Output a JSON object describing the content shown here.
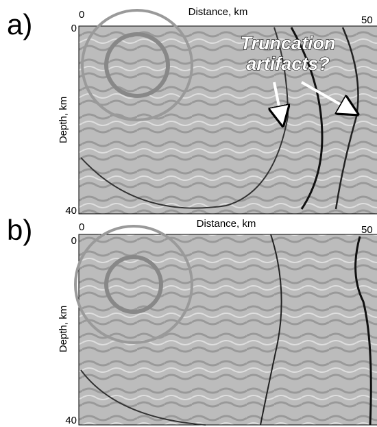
{
  "panels": [
    {
      "label": "a)",
      "x_label": "Distance, km",
      "y_label": "Depth, km",
      "x_ticks": [
        "0",
        "50"
      ],
      "y_ticks": [
        "0",
        "40"
      ],
      "annotation": [
        "Truncation",
        "artifacts?"
      ]
    },
    {
      "label": "b)",
      "x_label": "Distance, km",
      "y_label": "Depth, km",
      "x_ticks": [
        "0",
        "50"
      ],
      "y_ticks": [
        "0",
        "40"
      ]
    }
  ]
}
